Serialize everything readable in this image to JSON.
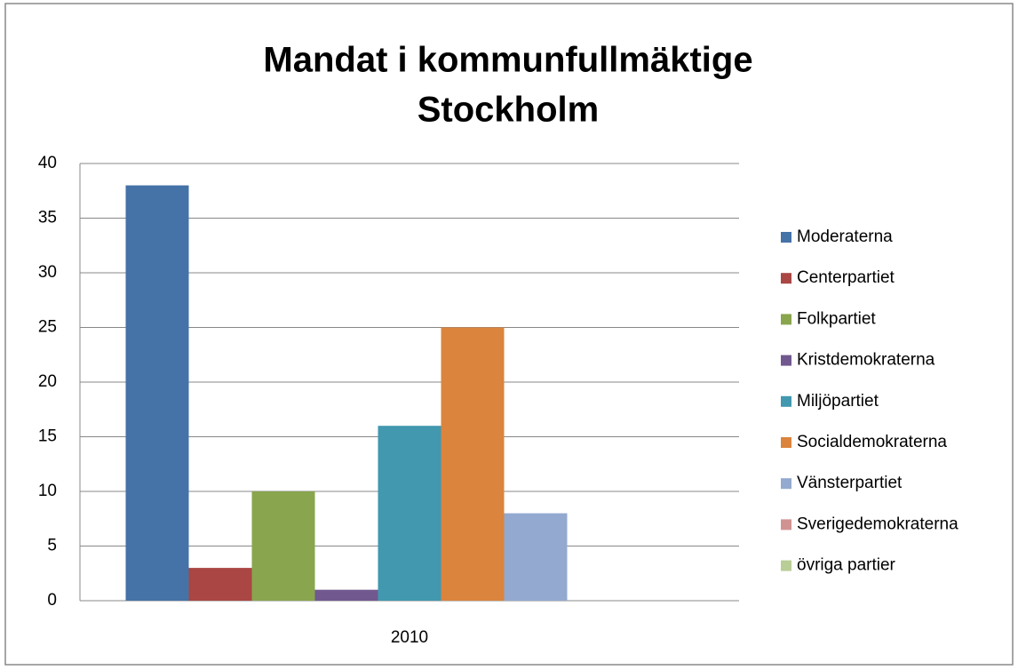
{
  "chart_data": {
    "type": "bar",
    "title": [
      "Mandat i kommunfullmäktige",
      "Stockholm"
    ],
    "categories": [
      "2010"
    ],
    "series": [
      {
        "name": "Moderaterna",
        "color": "#4572a7",
        "values": [
          38
        ]
      },
      {
        "name": "Centerpartiet",
        "color": "#aa4643",
        "values": [
          3
        ]
      },
      {
        "name": "Folkpartiet",
        "color": "#89a54e",
        "values": [
          10
        ]
      },
      {
        "name": "Kristdemokraterna",
        "color": "#71588f",
        "values": [
          1
        ]
      },
      {
        "name": "Miljöpartiet",
        "color": "#4198af",
        "values": [
          16
        ]
      },
      {
        "name": "Socialdemokraterna",
        "color": "#db843d",
        "values": [
          25
        ]
      },
      {
        "name": "Vänsterpartiet",
        "color": "#93a9cf",
        "values": [
          8
        ]
      },
      {
        "name": "Sverigedemokraterna",
        "color": "#d19392",
        "values": [
          0
        ]
      },
      {
        "name": "övriga partier",
        "color": "#b9cd96",
        "values": [
          0
        ]
      }
    ],
    "ylim": [
      0,
      40
    ],
    "yticks": [
      0,
      5,
      10,
      15,
      20,
      25,
      30,
      35,
      40
    ],
    "grid": true,
    "legend": "right"
  }
}
